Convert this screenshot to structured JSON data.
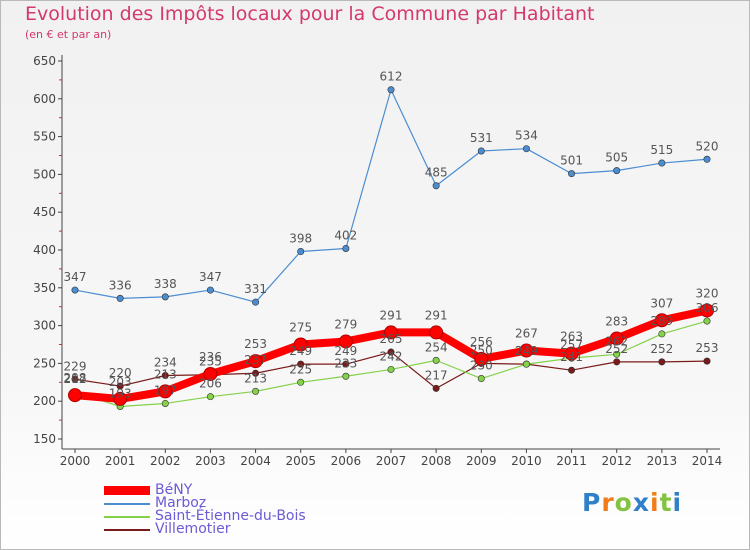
{
  "chart_data": {
    "type": "line",
    "title": "Evolution des Impôts locaux pour la Commune par Habitant",
    "subtitle": "(en € et par an)",
    "xlabel": "",
    "ylabel": "",
    "x": [
      "2000",
      "2001",
      "2002",
      "2003",
      "2004",
      "2005",
      "2006",
      "2007",
      "2008",
      "2009",
      "2010",
      "2011",
      "2012",
      "2013",
      "2014"
    ],
    "yticks": [
      150,
      200,
      250,
      300,
      350,
      400,
      450,
      500,
      550,
      600,
      650
    ],
    "ylim": [
      150,
      650
    ],
    "grid": false,
    "legend_position": "bottom-left",
    "series": [
      {
        "name": "BéNY",
        "color": "#ff0000",
        "emphasis": true,
        "show_labels": true,
        "values": [
          208,
          203,
          213,
          236,
          253,
          275,
          279,
          291,
          291,
          256,
          267,
          263,
          283,
          307,
          320
        ]
      },
      {
        "name": "Marboz",
        "color": "#4b8dd0",
        "show_labels": true,
        "values": [
          347,
          336,
          338,
          347,
          331,
          398,
          402,
          612,
          485,
          531,
          534,
          501,
          505,
          515,
          520
        ]
      },
      {
        "name": "Saint-Étienne-du-Bois",
        "color": "#84d14a",
        "show_labels": true,
        "values": [
          212,
          193,
          197,
          206,
          213,
          225,
          233,
          242,
          254,
          230,
          249,
          257,
          262,
          289,
          306
        ]
      },
      {
        "name": "Villemotier",
        "color": "#7a1a1a",
        "show_labels": true,
        "values": [
          229,
          220,
          234,
          235,
          237,
          249,
          249,
          265,
          217,
          250,
          249,
          241,
          252,
          252,
          253
        ]
      }
    ]
  },
  "logo": {
    "letters": [
      "P",
      "r",
      "o",
      "x",
      "i",
      "t",
      "i"
    ],
    "colors": [
      "#2f80c8",
      "#f07d1a",
      "#84c341",
      "#2f80c8",
      "#f07d1a",
      "#84c341",
      "#2f80c8"
    ]
  }
}
